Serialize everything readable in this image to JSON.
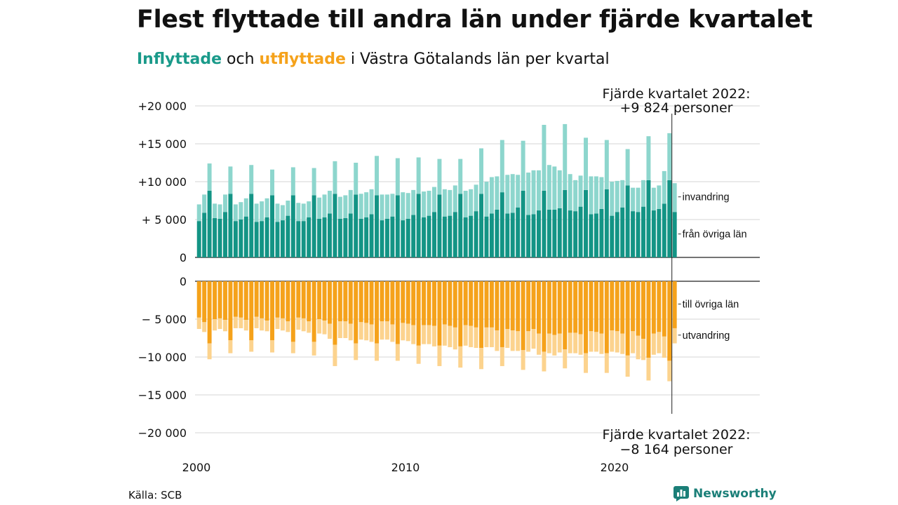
{
  "title": "Flest flyttade till andra län under fjärde kvartalet",
  "subtitle": {
    "inflyttade": "Inflyttade",
    "och": " och ",
    "utflyttade": "utflyttade",
    "rest": " i Västra Götalands län per kvartal"
  },
  "source": "Källa: SCB",
  "logo": {
    "text": "Newsworthy",
    "icon": "bar-chart-logo-icon"
  },
  "colors": {
    "teal_dark": "#139485",
    "teal_light": "#8dd6cd",
    "orange_dark": "#f5a21b",
    "orange_light": "#fcd38e",
    "grid": "#dddddd"
  },
  "chart_data": {
    "type": "bar",
    "stacked": true,
    "x_start": "2000-Q1",
    "x_end": "2022-Q4",
    "x_ticks": [
      "2000",
      "2010",
      "2020"
    ],
    "y_ticks_top": [
      "+20 000",
      "+15 000",
      "+10 000",
      "+ 5 000",
      "0"
    ],
    "y_ticks_bottom": [
      "0",
      "− 5 000",
      "−10 000",
      "−15 000",
      "−20 000"
    ],
    "ylim_top": [
      0,
      20000
    ],
    "ylim_bottom": [
      -20000,
      0
    ],
    "series_labels": {
      "from_other_counties": "från övriga län",
      "immigration": "invandring",
      "to_other_counties": "till övriga län",
      "emigration": "utvandring"
    },
    "annotations": {
      "top": [
        "Fjärde kvartalet 2022:",
        "+9 824 personer"
      ],
      "bottom": [
        "Fjärde kvartalet 2022:",
        "−8 164 personer"
      ]
    },
    "from_other_counties": [
      4800,
      5900,
      8800,
      5200,
      5100,
      6000,
      8400,
      4800,
      5000,
      5400,
      8400,
      4700,
      4800,
      5300,
      8200,
      4700,
      4900,
      5500,
      8200,
      4800,
      4800,
      5300,
      8200,
      5100,
      5300,
      5800,
      8400,
      5100,
      5200,
      5800,
      8300,
      5100,
      5300,
      5700,
      8200,
      4900,
      5100,
      5400,
      8200,
      4900,
      5100,
      5600,
      8400,
      5300,
      5500,
      6000,
      8300,
      5400,
      5500,
      6000,
      8400,
      5300,
      5500,
      6100,
      8400,
      5400,
      5800,
      6300,
      8600,
      5800,
      5900,
      6600,
      8800,
      5600,
      5700,
      6200,
      8800,
      6300,
      6300,
      6500,
      8900,
      6200,
      6100,
      6700,
      8900,
      5700,
      5800,
      6400,
      9000,
      5500,
      6000,
      6600,
      9500,
      6100,
      6000,
      6700,
      10200,
      6200,
      6400,
      7100,
      10200,
      6000
    ],
    "immigration": [
      2200,
      2400,
      3600,
      1900,
      1900,
      2300,
      3600,
      2200,
      2300,
      2400,
      3800,
      2400,
      2600,
      2500,
      3400,
      2400,
      2000,
      2000,
      3700,
      2400,
      2300,
      2100,
      3600,
      2800,
      3000,
      3000,
      4300,
      2900,
      3000,
      3100,
      4200,
      3300,
      3300,
      3300,
      5200,
      3400,
      3200,
      3000,
      4900,
      3700,
      3400,
      3300,
      4800,
      3400,
      3300,
      3300,
      4700,
      3600,
      3400,
      3500,
      4600,
      3500,
      3500,
      3500,
      6000,
      4600,
      4800,
      4400,
      6900,
      5100,
      5100,
      4300,
      6600,
      5600,
      5800,
      5300,
      8700,
      5900,
      5700,
      5000,
      8700,
      4800,
      4100,
      4100,
      6900,
      5000,
      4900,
      4200,
      6500,
      4500,
      4100,
      3600,
      4800,
      3100,
      3200,
      3500,
      5800,
      3000,
      3100,
      4300,
      6200,
      3800
    ],
    "to_other_counties": [
      4800,
      5400,
      8200,
      5000,
      4900,
      5100,
      7800,
      4700,
      4800,
      5100,
      7800,
      4700,
      4900,
      5200,
      7800,
      4800,
      4900,
      5300,
      8000,
      4800,
      4900,
      5300,
      8000,
      5000,
      5200,
      5600,
      8400,
      5300,
      5300,
      5600,
      8200,
      5400,
      5500,
      5700,
      8200,
      5300,
      5300,
      5700,
      8300,
      5500,
      5600,
      5800,
      8500,
      5800,
      5800,
      5900,
      8500,
      5700,
      5900,
      6100,
      8600,
      5800,
      5900,
      6100,
      8800,
      6100,
      6100,
      6500,
      8700,
      6300,
      6500,
      6600,
      9100,
      6600,
      6300,
      6900,
      9300,
      6900,
      7100,
      6900,
      9000,
      6800,
      6800,
      7000,
      9500,
      6600,
      6700,
      6900,
      9500,
      6500,
      6600,
      6900,
      9800,
      6600,
      7200,
      7600,
      10100,
      6900,
      6700,
      7300,
      10500,
      6200
    ],
    "emigration": [
      1500,
      1300,
      2100,
      1500,
      1400,
      1500,
      1700,
      1500,
      1400,
      1400,
      1500,
      1500,
      1600,
      1400,
      1600,
      1500,
      1600,
      1400,
      1500,
      1600,
      1700,
      1500,
      1800,
      1900,
      1800,
      2000,
      2800,
      2200,
      2200,
      2200,
      2200,
      2300,
      2300,
      2300,
      2300,
      2400,
      2400,
      2300,
      2200,
      2300,
      2300,
      2500,
      2400,
      2500,
      2500,
      2700,
      2700,
      2800,
      2800,
      2900,
      2800,
      2700,
      2800,
      2700,
      2800,
      2600,
      2600,
      2700,
      2500,
      2500,
      2700,
      2600,
      2600,
      2700,
      2600,
      2800,
      2600,
      2600,
      2700,
      2500,
      2500,
      2700,
      2700,
      2700,
      2600,
      2700,
      2600,
      2700,
      2600,
      2800,
      2800,
      2700,
      2800,
      2900,
      3100,
      2800,
      3000,
      2800,
      2800,
      2800,
      2700,
      2000
    ]
  }
}
